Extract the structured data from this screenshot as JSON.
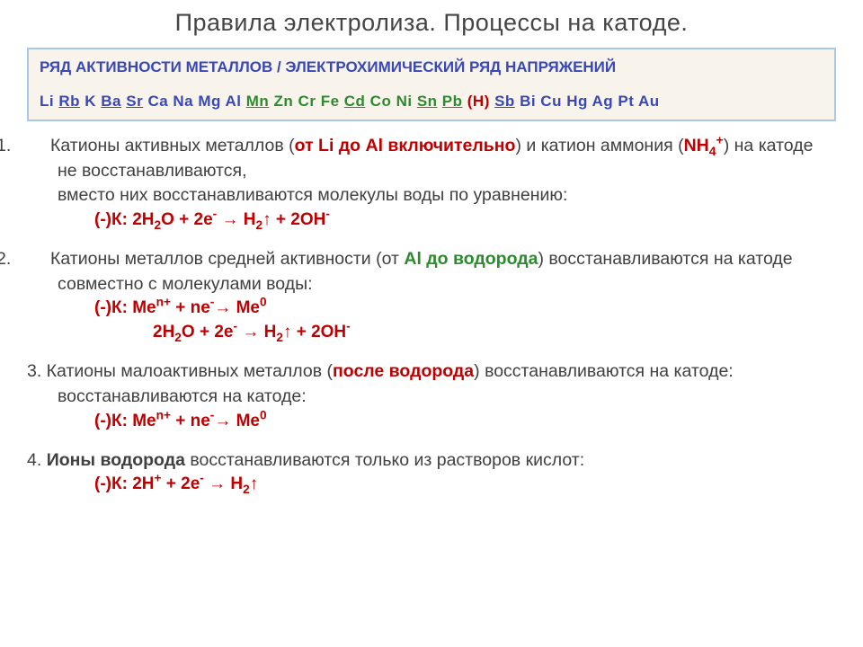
{
  "title": "Правила электролиза. Процессы на катоде.",
  "activity_box": {
    "caption": "РЯД АКТИВНОСТИ МЕТАЛЛОВ / ЭЛЕКТРОХИМИЧЕСКИЙ РЯД НАПРЯЖЕНИЙ",
    "series": [
      {
        "t": "Li",
        "c": "#3848b8",
        "u": false
      },
      {
        "t": "Rb",
        "c": "#3848b8",
        "u": true
      },
      {
        "t": "K",
        "c": "#3848b8",
        "u": false
      },
      {
        "t": "Ba",
        "c": "#3848b8",
        "u": true
      },
      {
        "t": "Sr",
        "c": "#3848b8",
        "u": true
      },
      {
        "t": "Ca",
        "c": "#3848b8",
        "u": false
      },
      {
        "t": "Na",
        "c": "#3848b8",
        "u": false
      },
      {
        "t": "Mg",
        "c": "#3848b8",
        "u": false
      },
      {
        "t": "Al",
        "c": "#3848b8",
        "u": false
      },
      {
        "t": "Mn",
        "c": "#2e8a2e",
        "u": true
      },
      {
        "t": "Zn",
        "c": "#2e8a2e",
        "u": false
      },
      {
        "t": "Cr",
        "c": "#2e8a2e",
        "u": false
      },
      {
        "t": "Fe",
        "c": "#2e8a2e",
        "u": false
      },
      {
        "t": "Cd",
        "c": "#2e8a2e",
        "u": true
      },
      {
        "t": "Co",
        "c": "#2e8a2e",
        "u": false
      },
      {
        "t": "Ni",
        "c": "#2e8a2e",
        "u": false
      },
      {
        "t": "Sn",
        "c": "#2e8a2e",
        "u": true
      },
      {
        "t": "Pb",
        "c": "#2e8a2e",
        "u": true
      },
      {
        "t": "(H)",
        "c": "#c00000",
        "u": false
      },
      {
        "t": "Sb",
        "c": "#3848b8",
        "u": true
      },
      {
        "t": "Bi",
        "c": "#3848b8",
        "u": false
      },
      {
        "t": "Cu",
        "c": "#3848b8",
        "u": false
      },
      {
        "t": "Hg",
        "c": "#3848b8",
        "u": false
      },
      {
        "t": "Ag",
        "c": "#3848b8",
        "u": false
      },
      {
        "t": "Pt",
        "c": "#3848b8",
        "u": false
      },
      {
        "t": "Au",
        "c": "#3848b8",
        "u": false
      }
    ]
  },
  "rules": {
    "r1": {
      "num": "1.",
      "a": "Катионы активных металлов (",
      "b": "от Li до Al включительно",
      "c": ") и катион аммония (",
      "d": "NH",
      "e": ") на катоде не восстанавливаются,",
      "f": "вместо них восстанавливаются молекулы воды по уравнению:",
      "eq_label": "(-)К: ",
      "eq": "2H₂O + 2e⁻ → H₂↑ + 2OH⁻"
    },
    "r2": {
      "num": "2.",
      "a": "Катионы металлов средней активности (от ",
      "b": "Al до водорода",
      "c": ") восстанавливаются на катоде совместно с молекулами воды:",
      "eq_label": "(-)К: ",
      "eq1": "Meⁿ⁺ + ne⁻→ Me⁰",
      "eq2": "2H₂O + 2e⁻ → H₂↑ + 2OH⁻"
    },
    "r3": {
      "num": "3.",
      "a": " Катионы малоактивных металлов (",
      "b": "после водорода",
      "c": ") восстанавливаются на катоде:",
      "eq_label": "(-)К: ",
      "eq": "Meⁿ⁺ + ne⁻→ Me⁰"
    },
    "r4": {
      "num": "4.",
      "a": "Ионы водорода",
      "b": " восстанавливаются только из растворов кислот:",
      "eq_label": "(-)К: ",
      "eq": "2H⁺ + 2e⁻ → H₂↑"
    }
  },
  "colors": {
    "red": "#c00000",
    "green": "#2e8a2e",
    "blue": "#3848b8",
    "text": "#404040",
    "box_border": "#a8c8e8",
    "box_bg": "#f8f4ec"
  }
}
